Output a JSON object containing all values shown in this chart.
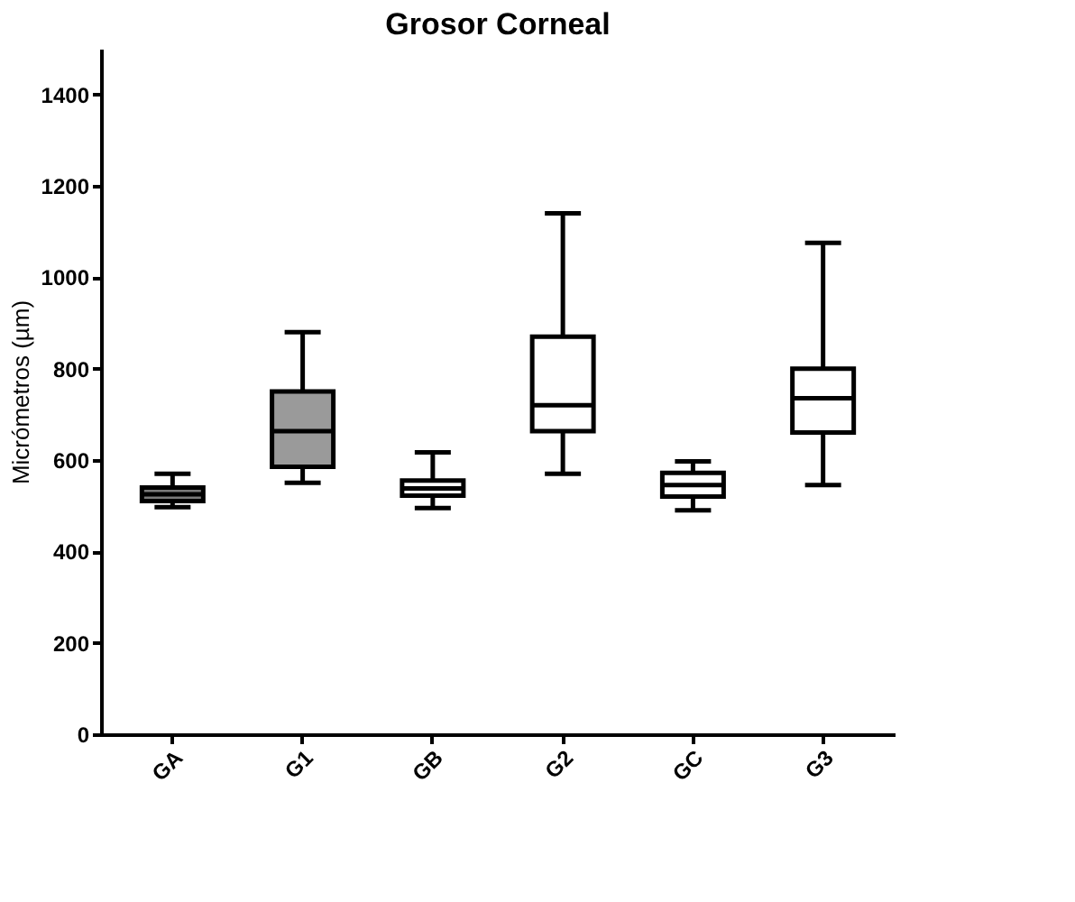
{
  "chart_data": {
    "type": "box",
    "title": "Grosor Corneal",
    "ylabel": "Micrómetros (µm)",
    "categories": [
      "GA",
      "G1",
      "GB",
      "G2",
      "GC",
      "G3"
    ],
    "boxes": [
      {
        "low": 497,
        "q1": 510,
        "median": 525,
        "q3": 540,
        "high": 570
      },
      {
        "low": 550,
        "q1": 585,
        "median": 663,
        "q3": 750,
        "high": 880
      },
      {
        "low": 495,
        "q1": 522,
        "median": 538,
        "q3": 555,
        "high": 617
      },
      {
        "low": 570,
        "q1": 663,
        "median": 720,
        "q3": 870,
        "high": 1140
      },
      {
        "low": 490,
        "q1": 520,
        "median": 545,
        "q3": 572,
        "high": 597
      },
      {
        "low": 545,
        "q1": 660,
        "median": 735,
        "q3": 800,
        "high": 1075
      }
    ],
    "colors": [
      "#7a7a7a",
      "#9a9a9a",
      "#ffffff",
      "#ffffff",
      "#ffffff",
      "#ffffff"
    ],
    "ylim": [
      0,
      1500
    ],
    "yticks": [
      0,
      200,
      400,
      600,
      800,
      1000,
      1200,
      1400
    ],
    "grid": false
  }
}
